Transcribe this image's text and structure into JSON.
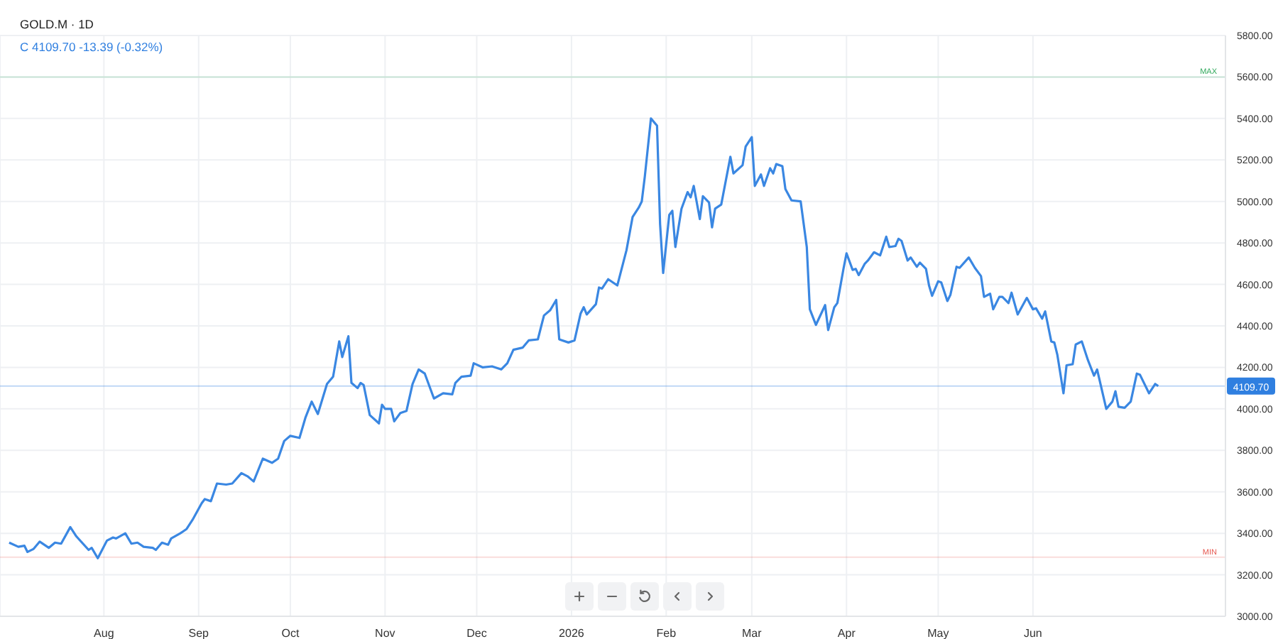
{
  "chart_data": {
    "type": "line",
    "title": "GOLD.M · 1D",
    "subtitle": "C 4109.70 -13.39 (-0.32%)",
    "x": [
      "2025-07-01",
      "2025-07-04",
      "2025-07-06",
      "2025-07-07",
      "2025-07-09",
      "2025-07-11",
      "2025-07-14",
      "2025-07-16",
      "2025-07-18",
      "2025-07-21",
      "2025-07-23",
      "2025-07-27",
      "2025-07-28",
      "2025-07-30",
      "2025-08-02",
      "2025-08-04",
      "2025-08-05",
      "2025-08-08",
      "2025-08-10",
      "2025-08-12",
      "2025-08-14",
      "2025-08-17",
      "2025-08-18",
      "2025-08-20",
      "2025-08-22",
      "2025-08-23",
      "2025-08-26",
      "2025-08-28",
      "2025-08-30",
      "2025-09-02",
      "2025-09-03",
      "2025-09-05",
      "2025-09-07",
      "2025-09-10",
      "2025-09-12",
      "2025-09-15",
      "2025-09-17",
      "2025-09-19",
      "2025-09-22",
      "2025-09-25",
      "2025-09-27",
      "2025-09-29",
      "2025-10-01",
      "2025-10-04",
      "2025-10-06",
      "2025-10-08",
      "2025-10-10",
      "2025-10-13",
      "2025-10-15",
      "2025-10-17",
      "2025-10-18",
      "2025-10-20",
      "2025-10-21",
      "2025-10-23",
      "2025-10-24",
      "2025-10-25",
      "2025-10-27",
      "2025-10-30",
      "2025-10-31",
      "2025-11-01",
      "2025-11-03",
      "2025-11-04",
      "2025-11-06",
      "2025-11-08",
      "2025-11-10",
      "2025-11-12",
      "2025-11-14",
      "2025-11-17",
      "2025-11-20",
      "2025-11-23",
      "2025-11-24",
      "2025-11-26",
      "2025-11-29",
      "2025-11-30",
      "2025-12-03",
      "2025-12-06",
      "2025-12-09",
      "2025-12-11",
      "2025-12-13",
      "2025-12-16",
      "2025-12-18",
      "2025-12-21",
      "2025-12-23",
      "2025-12-25",
      "2025-12-27",
      "2025-12-28",
      "2025-12-31",
      "2026-01-02",
      "2026-01-04",
      "2026-01-05",
      "2026-01-06",
      "2026-01-09",
      "2026-01-10",
      "2026-01-11",
      "2026-01-13",
      "2026-01-16",
      "2026-01-19",
      "2026-01-21",
      "2026-01-23",
      "2026-01-24",
      "2026-01-25",
      "2026-01-27",
      "2026-01-29",
      "2026-01-30",
      "2026-01-31",
      "2026-02-02",
      "2026-02-03",
      "2026-02-04",
      "2026-02-06",
      "2026-02-08",
      "2026-02-09",
      "2026-02-10",
      "2026-02-12",
      "2026-02-13",
      "2026-02-15",
      "2026-02-16",
      "2026-02-17",
      "2026-02-19",
      "2026-02-22",
      "2026-02-23",
      "2026-02-26",
      "2026-02-27",
      "2026-03-01",
      "2026-03-02",
      "2026-03-04",
      "2026-03-05",
      "2026-03-07",
      "2026-03-08",
      "2026-03-09",
      "2026-03-11",
      "2026-03-12",
      "2026-03-14",
      "2026-03-17",
      "2026-03-19",
      "2026-03-20",
      "2026-03-22",
      "2026-03-25",
      "2026-03-26",
      "2026-03-28",
      "2026-03-29",
      "2026-03-31",
      "2026-04-01",
      "2026-04-03",
      "2026-04-04",
      "2026-04-05",
      "2026-04-07",
      "2026-04-08",
      "2026-04-10",
      "2026-04-12",
      "2026-04-14",
      "2026-04-15",
      "2026-04-17",
      "2026-04-18",
      "2026-04-19",
      "2026-04-21",
      "2026-04-22",
      "2026-04-24",
      "2026-04-25",
      "2026-04-27",
      "2026-04-28",
      "2026-04-29",
      "2026-05-01",
      "2026-05-02",
      "2026-05-04",
      "2026-05-05",
      "2026-05-07",
      "2026-05-08",
      "2026-05-11",
      "2026-05-13",
      "2026-05-15",
      "2026-05-16",
      "2026-05-18",
      "2026-05-19",
      "2026-05-21",
      "2026-05-22",
      "2026-05-24",
      "2026-05-25",
      "2026-05-27",
      "2026-05-30",
      "2026-06-01",
      "2026-06-02",
      "2026-06-04",
      "2026-06-05",
      "2026-06-07",
      "2026-06-08",
      "2026-06-09",
      "2026-06-11",
      "2026-06-12",
      "2026-06-14",
      "2026-06-15",
      "2026-06-17",
      "2026-06-19",
      "2026-06-21",
      "2026-06-22",
      "2026-06-25",
      "2026-06-27",
      "2026-06-28",
      "2026-06-29",
      "2026-07-01",
      "2026-07-03",
      "2026-07-05",
      "2026-07-06",
      "2026-07-09",
      "2026-07-11",
      "2026-07-12"
    ],
    "series": [
      {
        "color": "#3a87e2",
        "values": [
          3355,
          3335,
          3340,
          3310,
          3325,
          3360,
          3330,
          3355,
          3350,
          3430,
          3385,
          3320,
          3330,
          3280,
          3365,
          3380,
          3375,
          3400,
          3350,
          3355,
          3335,
          3330,
          3320,
          3355,
          3345,
          3375,
          3400,
          3420,
          3465,
          3545,
          3565,
          3555,
          3640,
          3635,
          3640,
          3690,
          3675,
          3650,
          3760,
          3740,
          3760,
          3845,
          3870,
          3860,
          3960,
          4035,
          3975,
          4120,
          4155,
          4325,
          4250,
          4350,
          4125,
          4100,
          4125,
          4115,
          3970,
          3930,
          4020,
          4000,
          4000,
          3940,
          3980,
          3990,
          4120,
          4190,
          4170,
          4050,
          4075,
          4070,
          4125,
          4155,
          4160,
          4220,
          4200,
          4205,
          4190,
          4220,
          4285,
          4295,
          4330,
          4335,
          4450,
          4475,
          4525,
          4335,
          4320,
          4330,
          4460,
          4490,
          4455,
          4505,
          4585,
          4580,
          4625,
          4595,
          4765,
          4925,
          4970,
          5000,
          5120,
          5400,
          5365,
          4890,
          4655,
          4935,
          4955,
          4780,
          4965,
          5045,
          5020,
          5075,
          4915,
          5025,
          4995,
          4875,
          4965,
          4985,
          5215,
          5135,
          5175,
          5265,
          5310,
          5075,
          5130,
          5075,
          5160,
          5135,
          5180,
          5170,
          5060,
          5005,
          5000,
          4780,
          4480,
          4405,
          4500,
          4380,
          4490,
          4510,
          4675,
          4750,
          4670,
          4675,
          4645,
          4700,
          4715,
          4755,
          4740,
          4830,
          4780,
          4785,
          4820,
          4810,
          4715,
          4730,
          4685,
          4705,
          4675,
          4595,
          4545,
          4615,
          4610,
          4520,
          4550,
          4685,
          4680,
          4730,
          4680,
          4640,
          4540,
          4555,
          4480,
          4540,
          4540,
          4510,
          4560,
          4455,
          4535,
          4480,
          4485,
          4435,
          4470,
          4325,
          4320,
          4260,
          4075,
          4210,
          4215,
          4310,
          4325,
          4235,
          4160,
          4190,
          4000,
          4035,
          4085,
          4010,
          4005,
          4035,
          4170,
          4165,
          4075,
          4120,
          4109.7
        ]
      }
    ],
    "xlim": [
      "2025-06-28",
      "2026-08-03"
    ],
    "xticks": [
      {
        "value": "2025-08-01",
        "label": "Aug"
      },
      {
        "value": "2025-09-01",
        "label": "Sep"
      },
      {
        "value": "2025-10-01",
        "label": "Oct"
      },
      {
        "value": "2025-11-01",
        "label": "Nov"
      },
      {
        "value": "2025-12-01",
        "label": "Dec"
      },
      {
        "value": "2026-01-01",
        "label": "2026"
      },
      {
        "value": "2026-02-01",
        "label": "Feb"
      },
      {
        "value": "2026-03-01",
        "label": "Mar"
      },
      {
        "value": "2026-04-01",
        "label": "Apr"
      },
      {
        "value": "2026-05-01",
        "label": "May"
      },
      {
        "value": "2026-06-01",
        "label": "Jun"
      }
    ],
    "ylim": [
      3000,
      5800
    ],
    "yticks": [
      {
        "value": 3000,
        "label": "3000.00"
      },
      {
        "value": 3200,
        "label": "3200.00"
      },
      {
        "value": 3400,
        "label": "3400.00"
      },
      {
        "value": 3600,
        "label": "3600.00"
      },
      {
        "value": 3800,
        "label": "3800.00"
      },
      {
        "value": 4000,
        "label": "4000.00"
      },
      {
        "value": 4200,
        "label": "4200.00"
      },
      {
        "value": 4400,
        "label": "4400.00"
      },
      {
        "value": 4600,
        "label": "4600.00"
      },
      {
        "value": 4800,
        "label": "4800.00"
      },
      {
        "value": 5000,
        "label": "5000.00"
      },
      {
        "value": 5200,
        "label": "5200.00"
      },
      {
        "value": 5400,
        "label": "5400.00"
      },
      {
        "value": 5600,
        "label": "5600.00"
      },
      {
        "value": 5800,
        "label": "5800.00"
      }
    ],
    "ref_lines": [
      {
        "axis": "y",
        "value": 5600,
        "label": "MAX",
        "color": "#2ea85a"
      },
      {
        "axis": "y",
        "value": 3285,
        "label": "MIN",
        "color": "#e5534b"
      },
      {
        "axis": "y",
        "value": 4109.7,
        "label": "4109.70",
        "color": "#2f7fe0"
      }
    ],
    "grid": true,
    "marker": "none",
    "line_style": "solid"
  }
}
